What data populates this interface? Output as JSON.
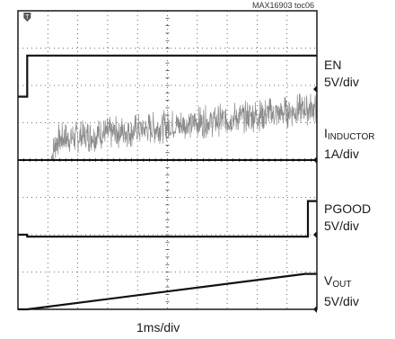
{
  "chart_data": {
    "type": "line",
    "figure_id": "MAX16903 toc06",
    "x_scale": "1ms/div",
    "x_divisions": 10,
    "y_divisions": 8,
    "trigger_marker": "T",
    "colors": {
      "frame": "#1a1a1a",
      "grid": "#444444",
      "trace": "#111111",
      "inductor_trace": "#8a8a8a"
    },
    "series": [
      {
        "name": "EN",
        "scale": "5V/div",
        "label_main": "EN",
        "t_ms": [
          0,
          0.31,
          0.31,
          10
        ],
        "div": [
          -0.2,
          -0.2,
          0.9,
          0.9
        ]
      },
      {
        "name": "IINDUCTOR",
        "label_prefix": "I",
        "label_sub": "INDUCTOR",
        "scale": "1A/div",
        "t_ms": [
          0,
          1.1,
          1.3,
          5,
          10
        ],
        "div": [
          0,
          0,
          0.55,
          0.9,
          1.4
        ],
        "noise_div": 0.45
      },
      {
        "name": "PGOOD",
        "scale": "5V/div",
        "label_main": "PGOOD",
        "t_ms": [
          0,
          0.31,
          0.31,
          9.7,
          9.7,
          10
        ],
        "div": [
          0,
          0,
          -0.05,
          -0.05,
          0.9,
          0.9
        ]
      },
      {
        "name": "VOUT",
        "label_prefix": "V",
        "label_sub": "OUT",
        "scale": "5V/div",
        "t_ms": [
          0,
          0.31,
          9.6,
          10
        ],
        "div": [
          0,
          0,
          0.95,
          0.95
        ]
      }
    ]
  }
}
